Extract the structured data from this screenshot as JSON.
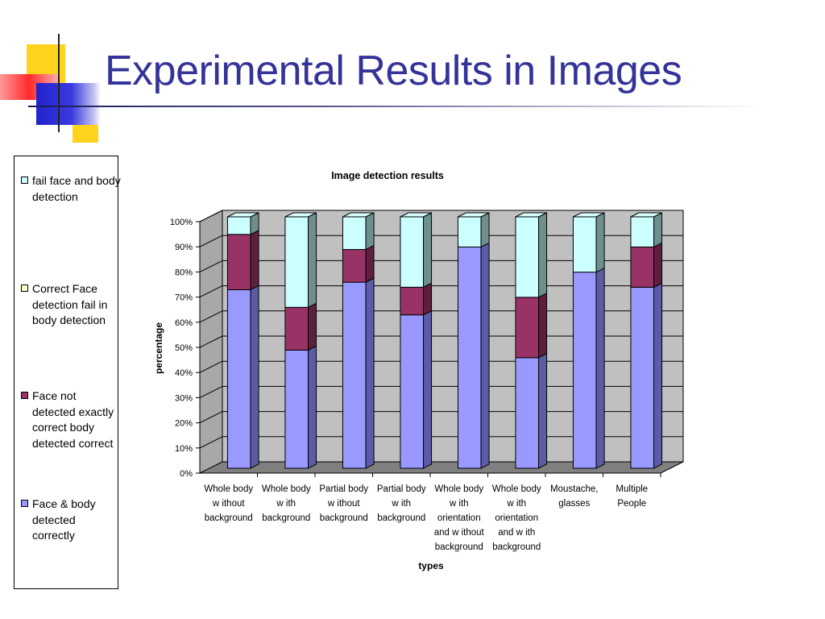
{
  "slide": {
    "title": "Experimental Results in Images"
  },
  "legend": {
    "items": [
      {
        "label": "fail face and body detection",
        "color": "#CCFFFF"
      },
      {
        "label": "Correct Face detection fail in body detection",
        "color": "#FFFFCC"
      },
      {
        "label": "Face not detected exactly correct body detected correct",
        "color": "#993366"
      },
      {
        "label": "Face & body detected correctly",
        "color": "#9999FF"
      }
    ]
  },
  "chart_data": {
    "type": "bar",
    "stacked": true,
    "three_d": true,
    "title": "Image detection results",
    "xlabel": "types",
    "ylabel": "percentage",
    "ylim": [
      0,
      100
    ],
    "y_ticks": [
      "0%",
      "10%",
      "20%",
      "30%",
      "40%",
      "50%",
      "60%",
      "70%",
      "80%",
      "90%",
      "100%"
    ],
    "categories": [
      [
        "Whole body",
        "w ithout",
        "background"
      ],
      [
        "Whole body",
        "w ith",
        "background"
      ],
      [
        "Partial body",
        "w ithout",
        "background"
      ],
      [
        "Partial body",
        "w ith",
        "background"
      ],
      [
        "Whole body",
        "w ith",
        "orientation",
        "and w ithout",
        "background"
      ],
      [
        "Whole body",
        "w ith",
        "orientation",
        "and w ith",
        "background"
      ],
      [
        "Moustache,",
        "glasses"
      ],
      [
        "Multiple",
        "People"
      ]
    ],
    "series": [
      {
        "name": "Face & body detected correctly",
        "color": "#9999FF",
        "side": "#5B5BA6",
        "top": "#BBBBFF",
        "values": [
          71,
          47,
          74,
          61,
          88,
          44,
          78,
          72
        ]
      },
      {
        "name": "Face not detected exactly correct body detected correct",
        "color": "#993366",
        "side": "#5E1F3E",
        "top": "#B85C88",
        "values": [
          22,
          17,
          13,
          11,
          0,
          24,
          0,
          16
        ]
      },
      {
        "name": "Correct Face detection fail in body detection",
        "color": "#FFFFCC",
        "side": "#A6A67F",
        "top": "#FFFFE6",
        "values": [
          0,
          0,
          0,
          0,
          0,
          0,
          0,
          0
        ]
      },
      {
        "name": "fail face and body detection",
        "color": "#CCFFFF",
        "side": "#6F8F8F",
        "top": "#DDFFFF",
        "values": [
          7,
          36,
          13,
          28,
          12,
          32,
          22,
          12
        ]
      }
    ],
    "grid": true,
    "plot_background": "#C0C0C0",
    "legend_placement": "left"
  }
}
